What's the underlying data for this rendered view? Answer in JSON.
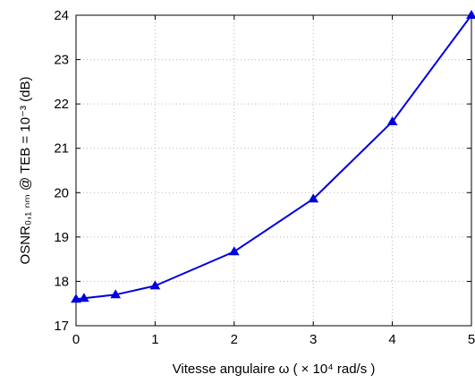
{
  "chart_data": {
    "type": "line",
    "title": "",
    "xlabel": "Vitesse angulaire ω  ( × 10⁴ rad/s )",
    "ylabel": "OSNR₀,₁ ₙₘ @ TEB = 10⁻³  (dB)",
    "xlim": [
      0,
      5
    ],
    "ylim": [
      17,
      24
    ],
    "xticks": [
      0,
      1,
      2,
      3,
      4,
      5
    ],
    "yticks": [
      17,
      18,
      19,
      20,
      21,
      22,
      23,
      24
    ],
    "grid": true,
    "series": [
      {
        "color": "#0000dd",
        "marker": "triangle",
        "x": [
          0,
          0.1,
          0.5,
          1,
          2,
          3,
          4,
          5
        ],
        "y": [
          17.6,
          17.62,
          17.7,
          17.9,
          18.67,
          19.86,
          21.6,
          24.0
        ]
      }
    ]
  }
}
